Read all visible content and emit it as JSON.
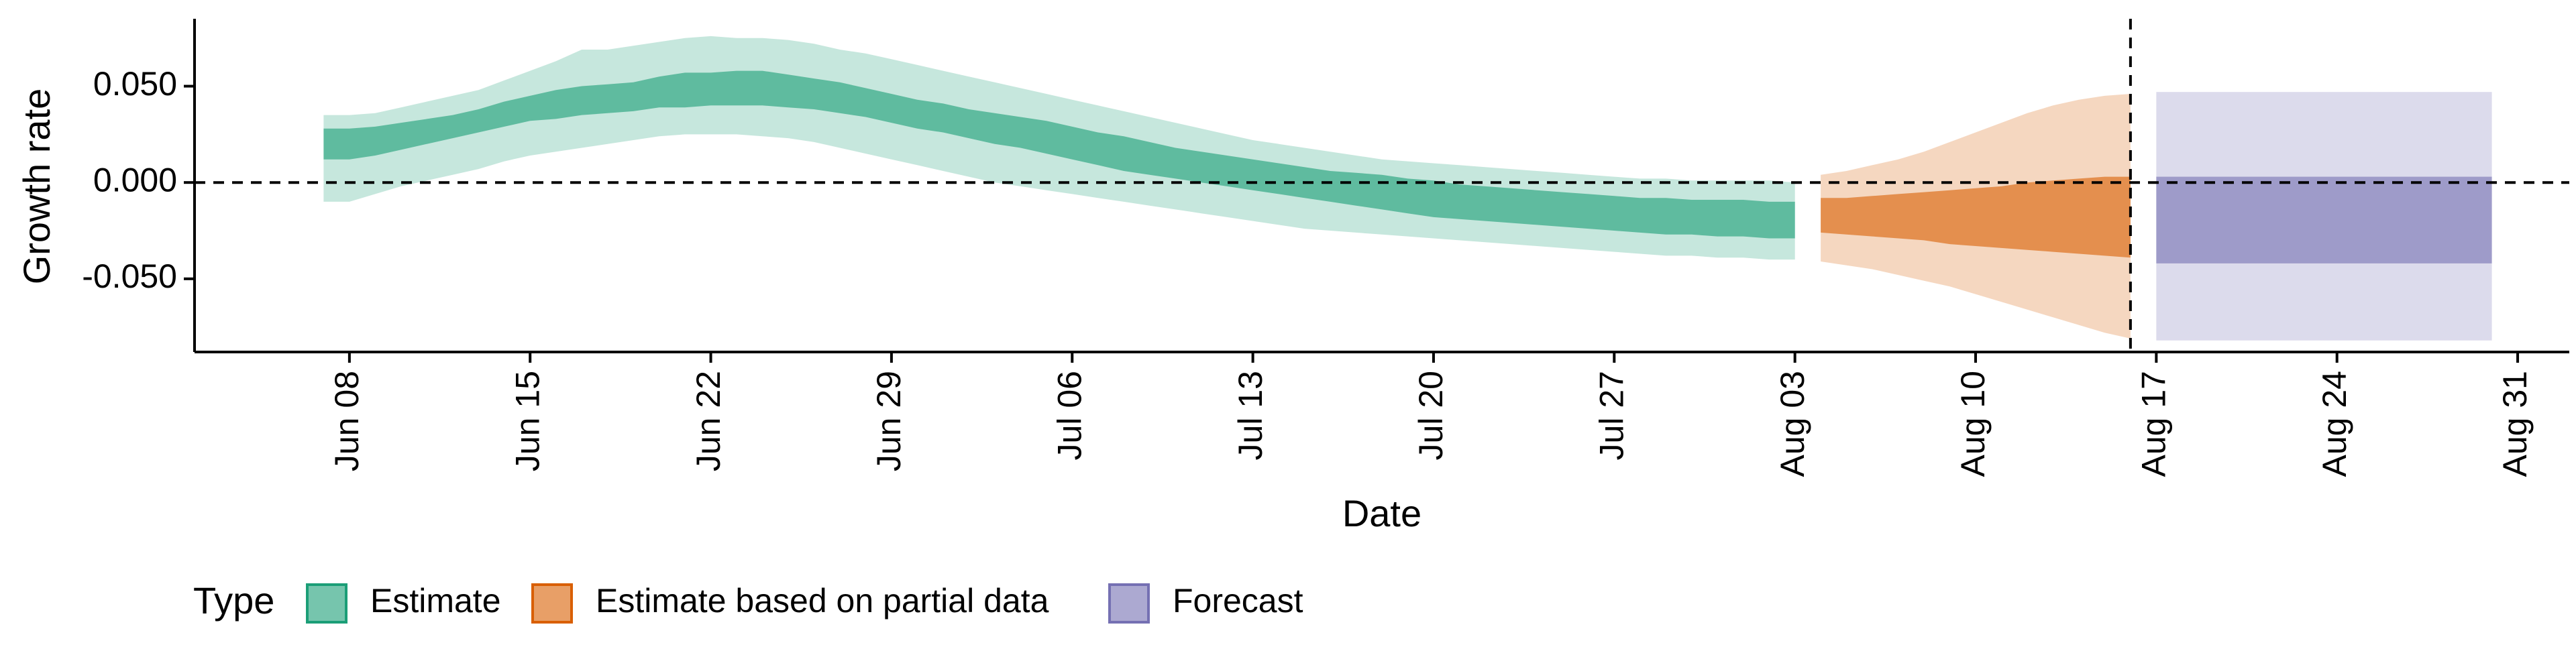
{
  "chart_data": {
    "type": "area",
    "title": "",
    "xlabel": "Date",
    "ylabel": "Growth rate",
    "x_start": "2020-06-07",
    "x_ticks": [
      {
        "date": "2020-06-08",
        "label": "Jun 08"
      },
      {
        "date": "2020-06-15",
        "label": "Jun 15"
      },
      {
        "date": "2020-06-22",
        "label": "Jun 22"
      },
      {
        "date": "2020-06-29",
        "label": "Jun 29"
      },
      {
        "date": "2020-07-06",
        "label": "Jul 06"
      },
      {
        "date": "2020-07-13",
        "label": "Jul 13"
      },
      {
        "date": "2020-07-20",
        "label": "Jul 20"
      },
      {
        "date": "2020-07-27",
        "label": "Jul 27"
      },
      {
        "date": "2020-08-03",
        "label": "Aug 03"
      },
      {
        "date": "2020-08-10",
        "label": "Aug 10"
      },
      {
        "date": "2020-08-17",
        "label": "Aug 17"
      },
      {
        "date": "2020-08-24",
        "label": "Aug 24"
      },
      {
        "date": "2020-08-31",
        "label": "Aug 31"
      }
    ],
    "xlim": [
      "2020-06-02",
      "2020-09-02"
    ],
    "y_ticks": [
      {
        "value": 0.05,
        "label": "0.050"
      },
      {
        "value": 0.0,
        "label": "0.000"
      },
      {
        "value": -0.05,
        "label": "-0.050"
      }
    ],
    "ylim": [
      -0.088,
      0.085
    ],
    "reference_lines": [
      {
        "axis": "y",
        "value": 0.0,
        "style": "dashed"
      },
      {
        "axis": "x",
        "value": "2020-08-16",
        "style": "dashed"
      }
    ],
    "legend": {
      "title": "Type",
      "position": "bottom-left"
    },
    "series": [
      {
        "name": "Estimate",
        "color": "#1B9E77",
        "start_date": "2020-06-07",
        "outer_upper": [
          0.035,
          0.035,
          0.036,
          0.039,
          0.042,
          0.045,
          0.048,
          0.053,
          0.058,
          0.063,
          0.069,
          0.069,
          0.071,
          0.073,
          0.075,
          0.076,
          0.075,
          0.075,
          0.074,
          0.072,
          0.069,
          0.067,
          0.064,
          0.061,
          0.058,
          0.055,
          0.052,
          0.049,
          0.046,
          0.043,
          0.04,
          0.037,
          0.034,
          0.031,
          0.028,
          0.025,
          0.022,
          0.02,
          0.018,
          0.016,
          0.014,
          0.012,
          0.011,
          0.01,
          0.009,
          0.008,
          0.007,
          0.006,
          0.005,
          0.004,
          0.003,
          0.002,
          0.002,
          0.001,
          0.001,
          0.001,
          0.001,
          0.0
        ],
        "inner_upper": [
          0.028,
          0.028,
          0.029,
          0.031,
          0.033,
          0.035,
          0.038,
          0.042,
          0.045,
          0.048,
          0.05,
          0.051,
          0.052,
          0.055,
          0.057,
          0.057,
          0.058,
          0.058,
          0.056,
          0.054,
          0.052,
          0.049,
          0.046,
          0.043,
          0.041,
          0.038,
          0.036,
          0.034,
          0.032,
          0.029,
          0.026,
          0.024,
          0.021,
          0.018,
          0.016,
          0.014,
          0.012,
          0.01,
          0.008,
          0.006,
          0.005,
          0.004,
          0.002,
          0.001,
          -0.001,
          -0.002,
          -0.003,
          -0.004,
          -0.005,
          -0.006,
          -0.007,
          -0.008,
          -0.008,
          -0.009,
          -0.009,
          -0.009,
          -0.01,
          -0.01
        ],
        "inner_lower": [
          0.012,
          0.012,
          0.014,
          0.017,
          0.02,
          0.023,
          0.026,
          0.029,
          0.032,
          0.033,
          0.035,
          0.036,
          0.037,
          0.039,
          0.039,
          0.04,
          0.04,
          0.04,
          0.039,
          0.038,
          0.036,
          0.034,
          0.031,
          0.028,
          0.026,
          0.023,
          0.02,
          0.018,
          0.015,
          0.012,
          0.009,
          0.006,
          0.004,
          0.002,
          0.0,
          -0.002,
          -0.004,
          -0.006,
          -0.008,
          -0.01,
          -0.012,
          -0.014,
          -0.016,
          -0.018,
          -0.019,
          -0.02,
          -0.021,
          -0.022,
          -0.023,
          -0.024,
          -0.025,
          -0.026,
          -0.027,
          -0.027,
          -0.028,
          -0.028,
          -0.029,
          -0.029
        ],
        "outer_lower": [
          -0.01,
          -0.01,
          -0.006,
          -0.002,
          0.001,
          0.004,
          0.007,
          0.011,
          0.014,
          0.016,
          0.018,
          0.02,
          0.022,
          0.024,
          0.025,
          0.025,
          0.025,
          0.024,
          0.023,
          0.021,
          0.018,
          0.015,
          0.012,
          0.009,
          0.006,
          0.003,
          0.0,
          -0.002,
          -0.004,
          -0.006,
          -0.008,
          -0.01,
          -0.012,
          -0.014,
          -0.016,
          -0.018,
          -0.02,
          -0.022,
          -0.024,
          -0.025,
          -0.026,
          -0.027,
          -0.028,
          -0.029,
          -0.03,
          -0.031,
          -0.032,
          -0.033,
          -0.034,
          -0.035,
          -0.036,
          -0.037,
          -0.038,
          -0.038,
          -0.039,
          -0.039,
          -0.04,
          -0.04
        ]
      },
      {
        "name": "Estimate based on partial data",
        "color": "#D95F02",
        "start_date": "2020-08-04",
        "outer_upper": [
          0.004,
          0.006,
          0.009,
          0.012,
          0.016,
          0.021,
          0.026,
          0.031,
          0.036,
          0.04,
          0.043,
          0.045,
          0.046
        ],
        "inner_upper": [
          -0.008,
          -0.008,
          -0.007,
          -0.006,
          -0.005,
          -0.004,
          -0.003,
          -0.002,
          0.0,
          0.001,
          0.002,
          0.003,
          0.003
        ],
        "inner_lower": [
          -0.026,
          -0.027,
          -0.028,
          -0.029,
          -0.03,
          -0.032,
          -0.033,
          -0.034,
          -0.035,
          -0.036,
          -0.037,
          -0.038,
          -0.039
        ],
        "outer_lower": [
          -0.041,
          -0.043,
          -0.045,
          -0.048,
          -0.051,
          -0.054,
          -0.058,
          -0.062,
          -0.066,
          -0.07,
          -0.074,
          -0.078,
          -0.081
        ]
      },
      {
        "name": "Forecast",
        "color": "#7570B3",
        "start_date": "2020-08-17",
        "end_date": "2020-08-30",
        "outer_upper": 0.047,
        "inner_upper": 0.003,
        "inner_lower": -0.042,
        "outer_lower": -0.082
      }
    ]
  }
}
